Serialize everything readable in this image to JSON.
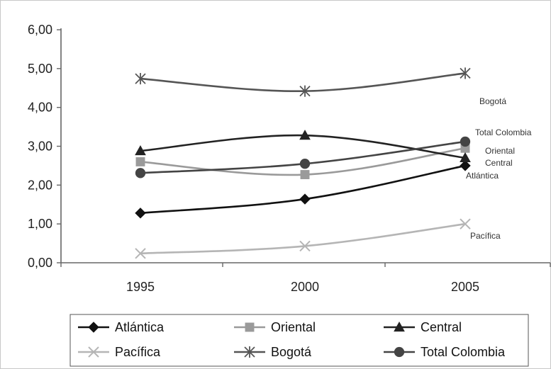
{
  "chart_data": {
    "type": "line",
    "x": [
      1995,
      2000,
      2005
    ],
    "x_tick_labels": [
      "1995",
      "2000",
      "2005"
    ],
    "y_tick_labels": [
      "0,00",
      "1,00",
      "2,00",
      "3,00",
      "4,00",
      "5,00",
      "6,00"
    ],
    "ylim": [
      0,
      6
    ],
    "grid": false,
    "legend_position": "bottom",
    "series": [
      {
        "name": "Atlántica",
        "values": [
          1.28,
          1.64,
          2.5
        ],
        "color": "#111111",
        "marker": "diamond",
        "end_label": "Atlántica"
      },
      {
        "name": "Oriental",
        "values": [
          2.6,
          2.27,
          2.95
        ],
        "color": "#9a9a9a",
        "marker": "square",
        "end_label": "Oriental"
      },
      {
        "name": "Central",
        "values": [
          2.88,
          3.28,
          2.7
        ],
        "color": "#222222",
        "marker": "triangle",
        "end_label": "Central"
      },
      {
        "name": "Pacífica",
        "values": [
          0.24,
          0.43,
          1.0
        ],
        "color": "#b5b5b5",
        "marker": "x",
        "end_label": "Pacífica"
      },
      {
        "name": "Bogotá",
        "values": [
          4.74,
          4.42,
          4.88
        ],
        "color": "#555555",
        "marker": "asterisk",
        "end_label": "Bogotá"
      },
      {
        "name": "Total Colombia",
        "values": [
          2.31,
          2.55,
          3.12
        ],
        "color": "#444444",
        "marker": "circle",
        "end_label": "Total Colombia"
      }
    ]
  }
}
